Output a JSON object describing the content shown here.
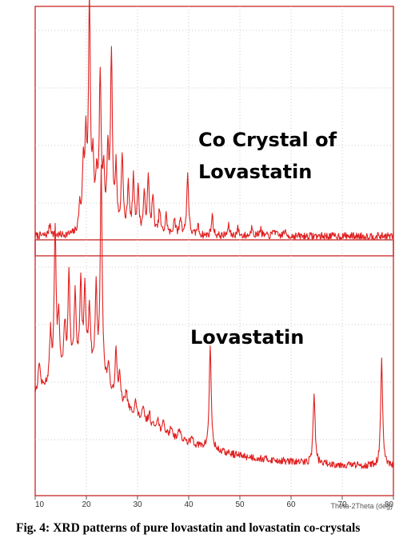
{
  "caption": {
    "label": "Fig. 4:",
    "text": "XRD patterns of pure lovastatin and lovastatin co-crystals"
  },
  "colors": {
    "trace": "#e02020",
    "frame": "#d04040",
    "grid": "#c8c8c8"
  },
  "chart_data": [
    {
      "type": "line",
      "label": "Co Crystal of Lovastatin",
      "xlim": [
        10,
        80
      ],
      "baseline": 0.08,
      "peaks": [
        {
          "x": 12.9,
          "h": 0.05
        },
        {
          "x": 18.7,
          "h": 0.1
        },
        {
          "x": 19.4,
          "h": 0.25
        },
        {
          "x": 19.9,
          "h": 0.35
        },
        {
          "x": 20.6,
          "h": 0.92
        },
        {
          "x": 21.3,
          "h": 0.25
        },
        {
          "x": 22.0,
          "h": 0.2
        },
        {
          "x": 22.7,
          "h": 0.62
        },
        {
          "x": 23.4,
          "h": 0.22
        },
        {
          "x": 24.2,
          "h": 0.3
        },
        {
          "x": 24.9,
          "h": 0.72
        },
        {
          "x": 25.8,
          "h": 0.25
        },
        {
          "x": 27.0,
          "h": 0.32
        },
        {
          "x": 28.2,
          "h": 0.2
        },
        {
          "x": 29.2,
          "h": 0.22
        },
        {
          "x": 30.1,
          "h": 0.18
        },
        {
          "x": 31.3,
          "h": 0.15
        },
        {
          "x": 32.1,
          "h": 0.22
        },
        {
          "x": 33.0,
          "h": 0.15
        },
        {
          "x": 34.3,
          "h": 0.1
        },
        {
          "x": 35.6,
          "h": 0.08
        },
        {
          "x": 37.2,
          "h": 0.07
        },
        {
          "x": 38.4,
          "h": 0.07
        },
        {
          "x": 39.8,
          "h": 0.25
        },
        {
          "x": 41.8,
          "h": 0.04
        },
        {
          "x": 44.6,
          "h": 0.08
        },
        {
          "x": 47.8,
          "h": 0.04
        },
        {
          "x": 49.6,
          "h": 0.03
        },
        {
          "x": 52.4,
          "h": 0.04
        },
        {
          "x": 54.0,
          "h": 0.03
        },
        {
          "x": 56.7,
          "h": 0.03
        },
        {
          "x": 58.7,
          "h": 0.02
        }
      ]
    },
    {
      "type": "line",
      "label": "Lovastatin",
      "xlabel": "Theta-2Theta (deg)",
      "xlim": [
        10,
        80
      ],
      "xticks": [
        10,
        20,
        30,
        40,
        50,
        60,
        70,
        80
      ],
      "baseline_start": 0.48,
      "baseline_end": 0.05,
      "peaks": [
        {
          "x": 10.8,
          "h": 0.12
        },
        {
          "x": 13.0,
          "h": 0.2
        },
        {
          "x": 13.9,
          "h": 0.62
        },
        {
          "x": 14.6,
          "h": 0.25
        },
        {
          "x": 15.8,
          "h": 0.2
        },
        {
          "x": 16.6,
          "h": 0.4
        },
        {
          "x": 17.8,
          "h": 0.3
        },
        {
          "x": 18.9,
          "h": 0.35
        },
        {
          "x": 19.7,
          "h": 0.3
        },
        {
          "x": 20.6,
          "h": 0.25
        },
        {
          "x": 21.9,
          "h": 0.35
        },
        {
          "x": 22.9,
          "h": 0.9
        },
        {
          "x": 24.3,
          "h": 0.1
        },
        {
          "x": 25.8,
          "h": 0.2
        },
        {
          "x": 26.5,
          "h": 0.1
        },
        {
          "x": 27.8,
          "h": 0.07
        },
        {
          "x": 29.6,
          "h": 0.06
        },
        {
          "x": 31.1,
          "h": 0.05
        },
        {
          "x": 32.3,
          "h": 0.05
        },
        {
          "x": 33.9,
          "h": 0.05
        },
        {
          "x": 35.1,
          "h": 0.04
        },
        {
          "x": 36.6,
          "h": 0.04
        },
        {
          "x": 38.2,
          "h": 0.05
        },
        {
          "x": 40.7,
          "h": 0.03
        },
        {
          "x": 44.2,
          "h": 0.44
        },
        {
          "x": 64.5,
          "h": 0.3
        },
        {
          "x": 77.7,
          "h": 0.45
        }
      ]
    }
  ]
}
